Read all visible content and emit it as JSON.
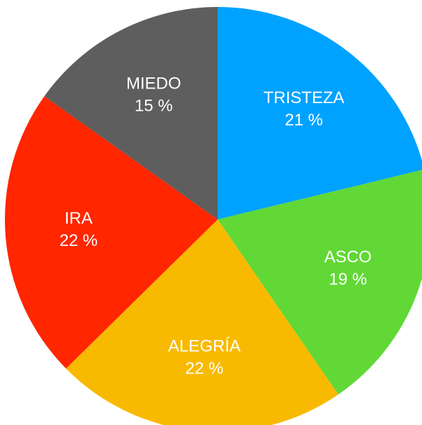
{
  "chart_data": {
    "type": "pie",
    "categories": [
      "TRISTEZA",
      "ASCO",
      "ALEGRÍA",
      "IRA",
      "MIEDO"
    ],
    "values": [
      21,
      19,
      22,
      22,
      15
    ],
    "value_labels": [
      "21 %",
      "19 %",
      "22 %",
      "22 %",
      "15 %"
    ],
    "colors": [
      "#00a2ff",
      "#61d836",
      "#f8ba00",
      "#ff2600",
      "#5e5e5e"
    ]
  }
}
